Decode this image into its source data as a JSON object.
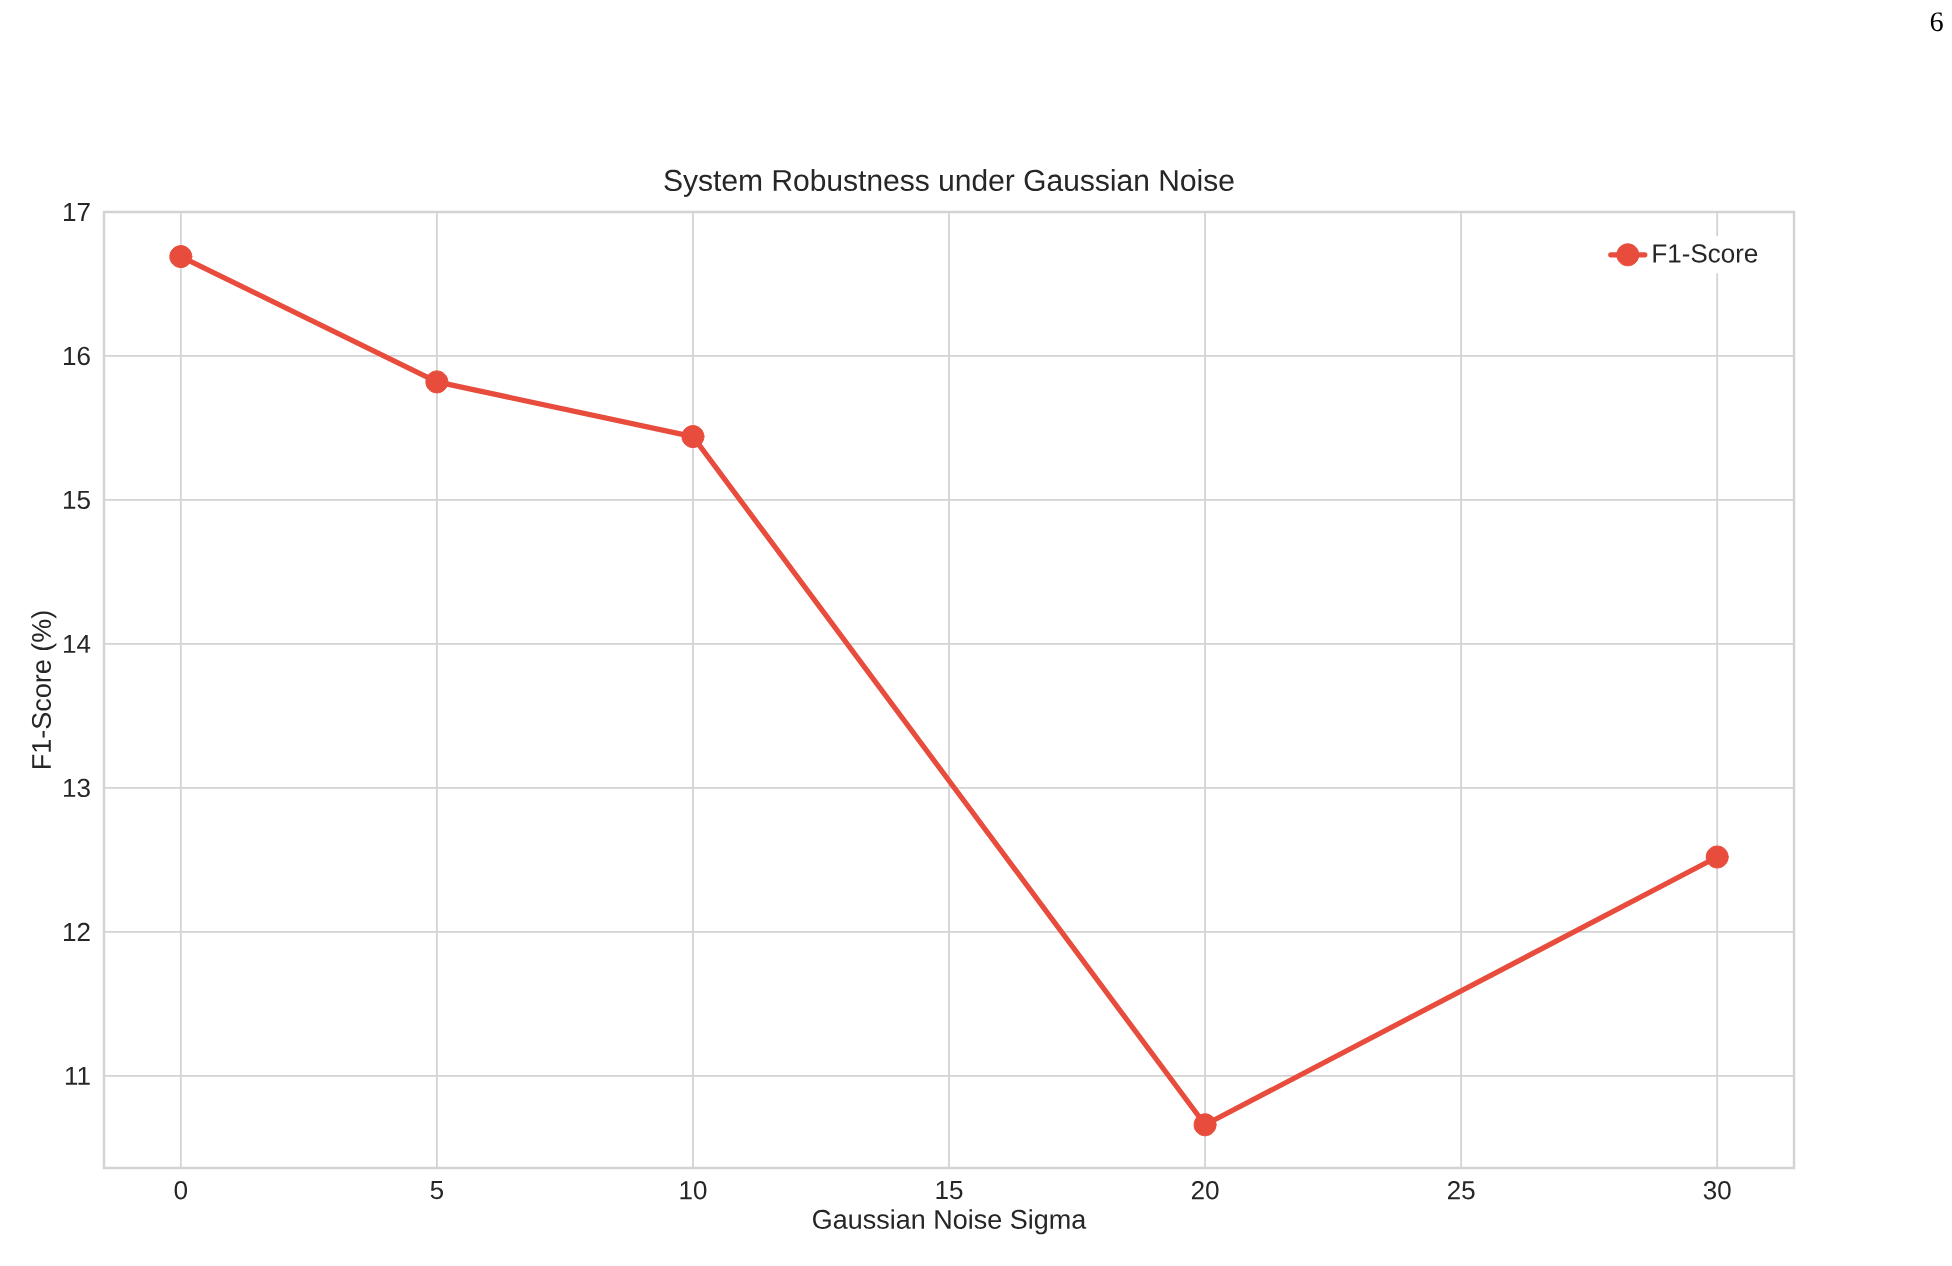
{
  "chart_data": {
    "type": "line",
    "title": "System Robustness under Gaussian Noise",
    "xlabel": "Gaussian Noise Sigma",
    "ylabel": "F1-Score (%)",
    "x": [
      0,
      5,
      10,
      20,
      30
    ],
    "series": [
      {
        "name": "F1-Score",
        "color": "#e74c3c",
        "values": [
          16.69,
          15.82,
          15.44,
          10.66,
          12.52
        ]
      }
    ],
    "xlim": [
      -1.5,
      31.5
    ],
    "ylim": [
      10.36,
      17.0
    ],
    "xticks": [
      0,
      5,
      10,
      15,
      20,
      25,
      30
    ],
    "yticks": [
      11,
      12,
      13,
      14,
      15,
      16,
      17
    ],
    "grid": true,
    "legend": "top right",
    "marker": "circle",
    "line_style": "solid",
    "annotations": [
      "6"
    ]
  }
}
